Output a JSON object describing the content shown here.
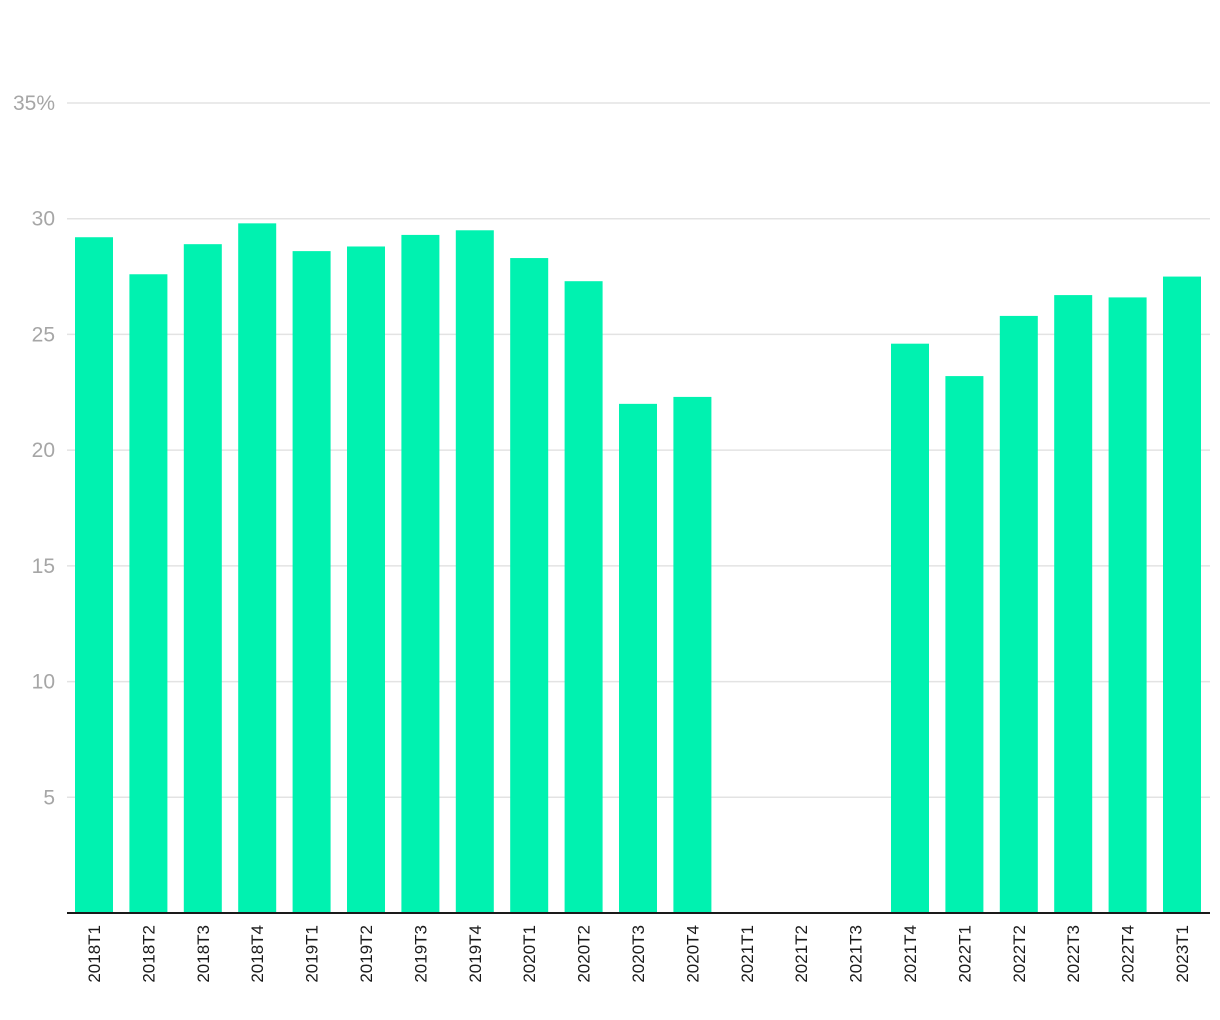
{
  "chart_data": {
    "type": "bar",
    "title": "",
    "xlabel": "",
    "ylabel": "",
    "categories": [
      "2018T1",
      "2018T2",
      "2018T3",
      "2018T4",
      "2019T1",
      "2019T2",
      "2019T3",
      "2019T4",
      "2020T1",
      "2020T2",
      "2020T3",
      "2020T4",
      "2021T1",
      "2021T2",
      "2021T3",
      "2021T4",
      "2022T1",
      "2022T2",
      "2022T3",
      "2022T4",
      "2023T1"
    ],
    "values": [
      29.2,
      27.6,
      28.9,
      29.8,
      28.6,
      28.8,
      29.3,
      29.5,
      28.3,
      27.3,
      22.0,
      22.3,
      null,
      null,
      null,
      24.6,
      23.2,
      25.8,
      26.7,
      26.6,
      27.5
    ],
    "ylim": [
      0,
      35
    ],
    "yticks": [
      5,
      10,
      15,
      20,
      25,
      30,
      35
    ],
    "ytick_labels": [
      "5",
      "10",
      "15",
      "20",
      "25",
      "30",
      "35%"
    ],
    "grid": true,
    "bar_color": "#00f2b0"
  }
}
